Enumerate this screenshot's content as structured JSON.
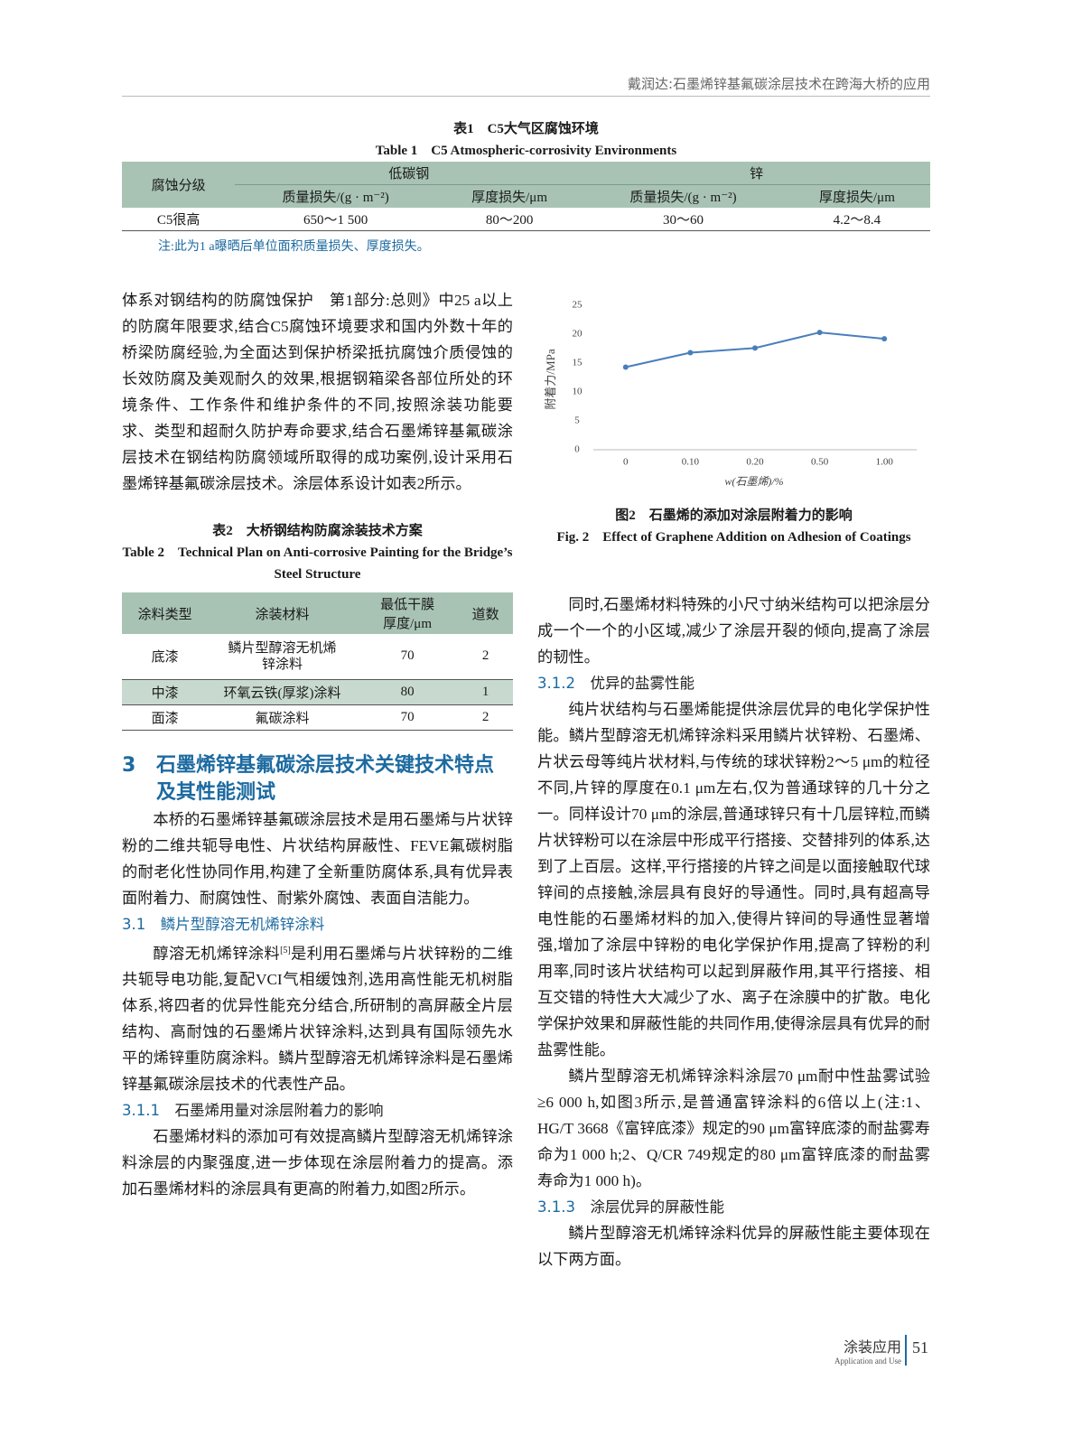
{
  "header": {
    "title": "戴润达:石墨烯锌基氟碳涂层技术在跨海大桥的应用"
  },
  "table1": {
    "title_cn": "表1　C5大气区腐蚀环境",
    "title_en": "Table 1　C5 Atmospheric-corrosivity Environments",
    "head_group": [
      "腐蚀分级",
      "低碳钢",
      "锌"
    ],
    "head": [
      "质量损失/(g · m⁻²)",
      "厚度损失/μm",
      "质量损失/(g · m⁻²)",
      "厚度损失/μm"
    ],
    "rows": [
      [
        "C5很高",
        "650～1 500",
        "80～200",
        "30～60",
        "4.2～8.4"
      ]
    ],
    "note": "注:此为1 a曝晒后单位面积质量损失、厚度损失。"
  },
  "left_intro": "体系对钢结构的防腐蚀保护　第1部分:总则》中25 a以上的防腐年限要求,结合C5腐蚀环境要求和国内外数十年的桥梁防腐经验,为全面达到保护桥梁抵抗腐蚀介质侵蚀的长效防腐及美观耐久的效果,根据钢箱梁各部位所处的环境条件、工作条件和维护条件的不同,按照涂装功能要求、类型和超耐久防护寿命要求,结合石墨烯锌基氟碳涂层技术在钢结构防腐领域所取得的成功案例,设计采用石墨烯锌基氟碳涂层技术。涂层体系设计如表2所示。",
  "table2": {
    "title_cn": "表2　大桥钢结构防腐涂装技术方案",
    "title_en": "Table 2　Technical Plan on Anti-corrosive Painting for the Bridge’s Steel Structure",
    "head": [
      "涂料类型",
      "涂装材料",
      "最低干膜厚度/μm",
      "道数"
    ],
    "rows": [
      [
        "底漆",
        "鳞片型醇溶无机烯锌涂料",
        "70",
        "2"
      ],
      [
        "中漆",
        "环氧云铁(厚浆)涂料",
        "80",
        "1"
      ],
      [
        "面漆",
        "氟碳涂料",
        "70",
        "2"
      ]
    ]
  },
  "section3": {
    "number": "3",
    "title": "石墨烯锌基氟碳涂层技术关键技术特点及其性能测试",
    "para": "本桥的石墨烯锌基氟碳涂层技术是用石墨烯与片状锌粉的二维共轭导电性、片状结构屏蔽性、FEVE氟碳树脂的耐老化性协同作用,构建了全新重防腐体系,具有优异表面附着力、耐腐蚀性、耐紫外腐蚀、表面自洁能力。",
    "s31_number": "3.1",
    "s31_title": "鳞片型醇溶无机烯锌涂料",
    "s31_para": [
      "醇溶无机烯锌涂料",
      "[5]",
      "是利用石墨烯与片状锌粉的二维共轭导电功能,复配VCI气相缓蚀剂,选用高性能无机树脂体系,将四者的优异性能充分结合,所研制的高屏蔽全片层结构、高耐蚀的石墨烯片状锌涂料,达到具有国际领先水平的烯锌重防腐涂料。鳞片型醇溶无机烯锌涂料是石墨烯锌基氟碳涂层技术的代表性产品。"
    ],
    "s311_number": "3.1.1",
    "s311_title": "石墨烯用量对涂层附着力的影响",
    "s311_para": "石墨烯材料的添加可有效提高鳞片型醇溶无机烯锌涂料涂层的内聚强度,进一步体现在涂层附着力的提高。添加石墨烯材料的涂层具有更高的附着力,如图2所示。",
    "right_para1": "同时,石墨烯材料特殊的小尺寸纳米结构可以把涂层分成一个一个的小区域,减少了涂层开裂的倾向,提高了涂层的韧性。",
    "s312_number": "3.1.2",
    "s312_title": "优异的盐雾性能",
    "s312_para1": "纯片状结构与石墨烯能提供涂层优异的电化学保护性能。鳞片型醇溶无机烯锌涂料采用鳞片状锌粉、石墨烯、片状云母等纯片状材料,与传统的球状锌粉2～5 μm的粒径不同,片锌的厚度在0.1 μm左右,仅为普通球锌的几十分之一。同样设计70 μm的涂层,普通球锌只有十几层锌粒,而鳞片状锌粉可以在涂层中形成平行搭接、交替排列的体系,达到了上百层。这样,平行搭接的片锌之间是以面接触取代球锌间的点接触,涂层具有良好的导通性。同时,具有超高导电性能的石墨烯材料的加入,使得片锌间的导通性显著增强,增加了涂层中锌粉的电化学保护作用,提高了锌粉的利用率,同时该片状结构可以起到屏蔽作用,其平行搭接、相互交错的特性大大减少了水、离子在涂膜中的扩散。电化学保护效果和屏蔽性能的共同作用,使得涂层具有优异的耐盐雾性能。",
    "s312_para2": "鳞片型醇溶无机烯锌涂料涂层70 μm耐中性盐雾试验≥6 000 h,如图3所示,是普通富锌涂料的6倍以上(注:1、HG/T 3668《富锌底漆》规定的90 μm富锌底漆的耐盐雾寿命为1 000 h;2、Q/CR 749规定的80 μm富锌底漆的耐盐雾寿命为1 000 h)。",
    "s313_number": "3.1.3",
    "s313_title": "涂层优异的屏蔽性能",
    "s313_para": "鳞片型醇溶无机烯锌涂料优异的屏蔽性能主要体现在以下两方面。"
  },
  "chart_data": {
    "type": "line",
    "caption_cn": "图2　石墨烯的添加对涂层附着力的影响",
    "caption_en": "Fig. 2　Effect of Graphene Addition on Adhesion of Coatings",
    "x_label": "w(石墨烯)/%",
    "y_label": "附着力/MPa",
    "categories": [
      "0",
      "0.10",
      "0.20",
      "0.50",
      "1.00"
    ],
    "values": [
      14.3,
      16.8,
      17.6,
      20.3,
      19.2
    ],
    "color": "#4a7ebb",
    "ylim": [
      0,
      25
    ],
    "yticks": [
      0,
      5,
      10,
      15,
      20,
      25
    ],
    "grid": false
  },
  "footer": {
    "journal": "涂装应用",
    "journal_en": "Application and Use",
    "page": "51"
  }
}
